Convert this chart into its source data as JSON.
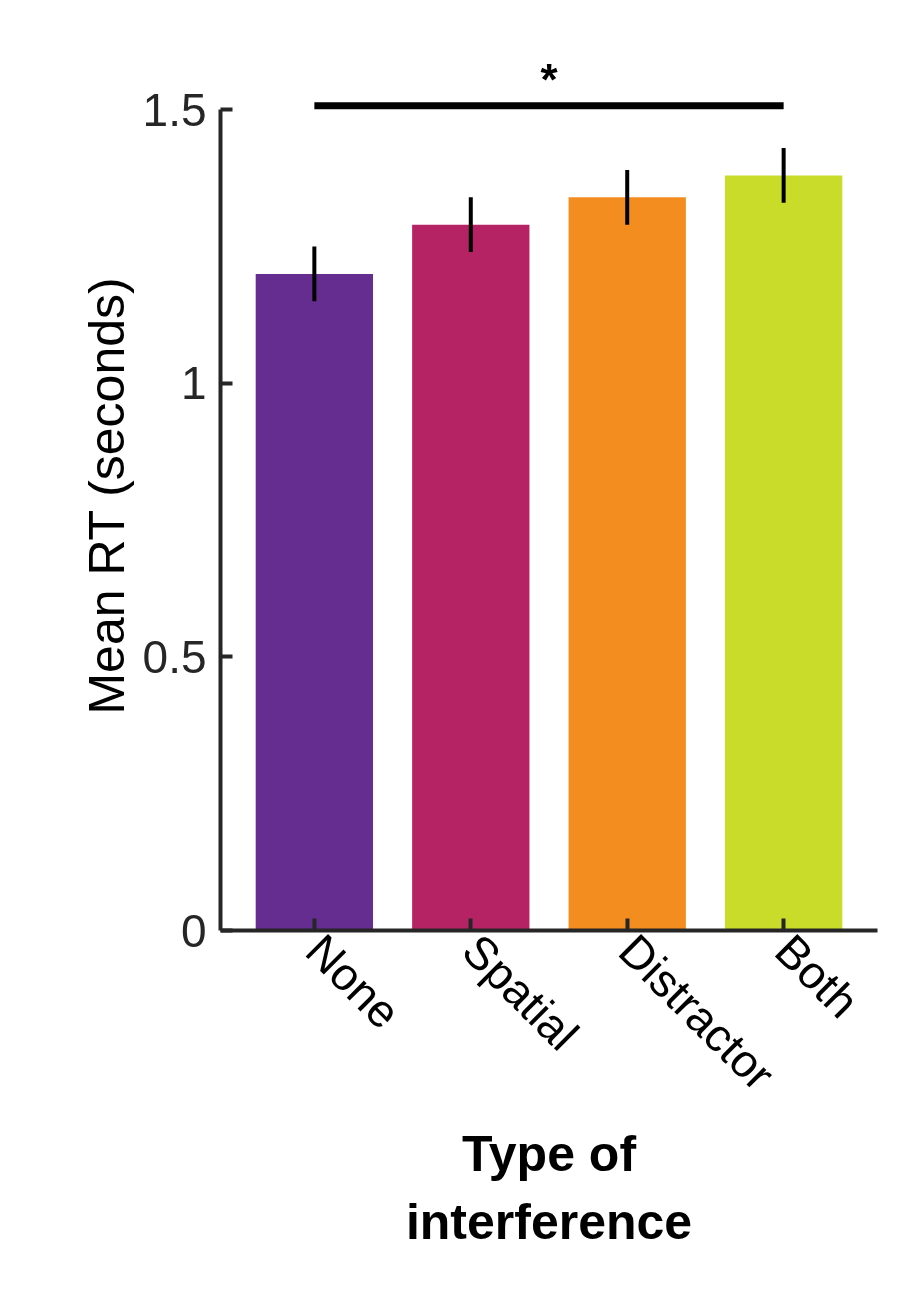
{
  "chart_data": {
    "type": "bar",
    "xlabel": "Type of\ninterference",
    "ylabel": "Mean RT (seconds)",
    "categories": [
      "None",
      "Spatial",
      "Distractor",
      "Both"
    ],
    "values": [
      1.2,
      1.29,
      1.34,
      1.38
    ],
    "colors": [
      "#652d90",
      "#b52364",
      "#f48d20",
      "#cadc2a"
    ],
    "errors": [
      0.05,
      0.05,
      0.05,
      0.05
    ],
    "ylim": [
      0,
      1.5
    ],
    "yticks": [
      0,
      0.5,
      1,
      1.5
    ],
    "grid": false,
    "annotations": [
      "*"
    ]
  }
}
